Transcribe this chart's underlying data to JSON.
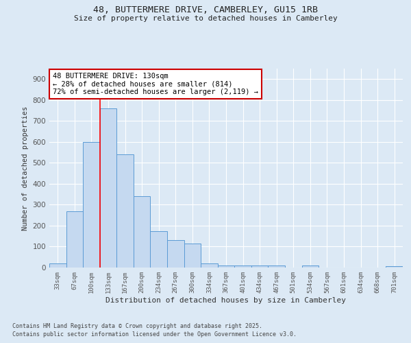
{
  "title_line1": "48, BUTTERMERE DRIVE, CAMBERLEY, GU15 1RB",
  "title_line2": "Size of property relative to detached houses in Camberley",
  "xlabel": "Distribution of detached houses by size in Camberley",
  "ylabel": "Number of detached properties",
  "bins": [
    "33sqm",
    "67sqm",
    "100sqm",
    "133sqm",
    "167sqm",
    "200sqm",
    "234sqm",
    "267sqm",
    "300sqm",
    "334sqm",
    "367sqm",
    "401sqm",
    "434sqm",
    "467sqm",
    "501sqm",
    "534sqm",
    "567sqm",
    "601sqm",
    "634sqm",
    "668sqm",
    "701sqm"
  ],
  "values": [
    20,
    270,
    600,
    760,
    540,
    340,
    175,
    130,
    115,
    20,
    10,
    10,
    10,
    10,
    0,
    10,
    0,
    0,
    0,
    0,
    8
  ],
  "bar_color": "#c5d9f0",
  "bar_edge_color": "#5b9bd5",
  "background_color": "#dce9f5",
  "plot_bg_color": "#dce9f5",
  "red_line_bin_index": 3,
  "ylim": [
    0,
    950
  ],
  "yticks": [
    0,
    100,
    200,
    300,
    400,
    500,
    600,
    700,
    800,
    900
  ],
  "annotation_text": "48 BUTTERMERE DRIVE: 130sqm\n← 28% of detached houses are smaller (814)\n72% of semi-detached houses are larger (2,119) →",
  "annotation_box_facecolor": "#ffffff",
  "annotation_box_edgecolor": "#cc0000",
  "footnote1": "Contains HM Land Registry data © Crown copyright and database right 2025.",
  "footnote2": "Contains public sector information licensed under the Open Government Licence v3.0.",
  "grid_color": "#ffffff",
  "tick_color": "#555555"
}
